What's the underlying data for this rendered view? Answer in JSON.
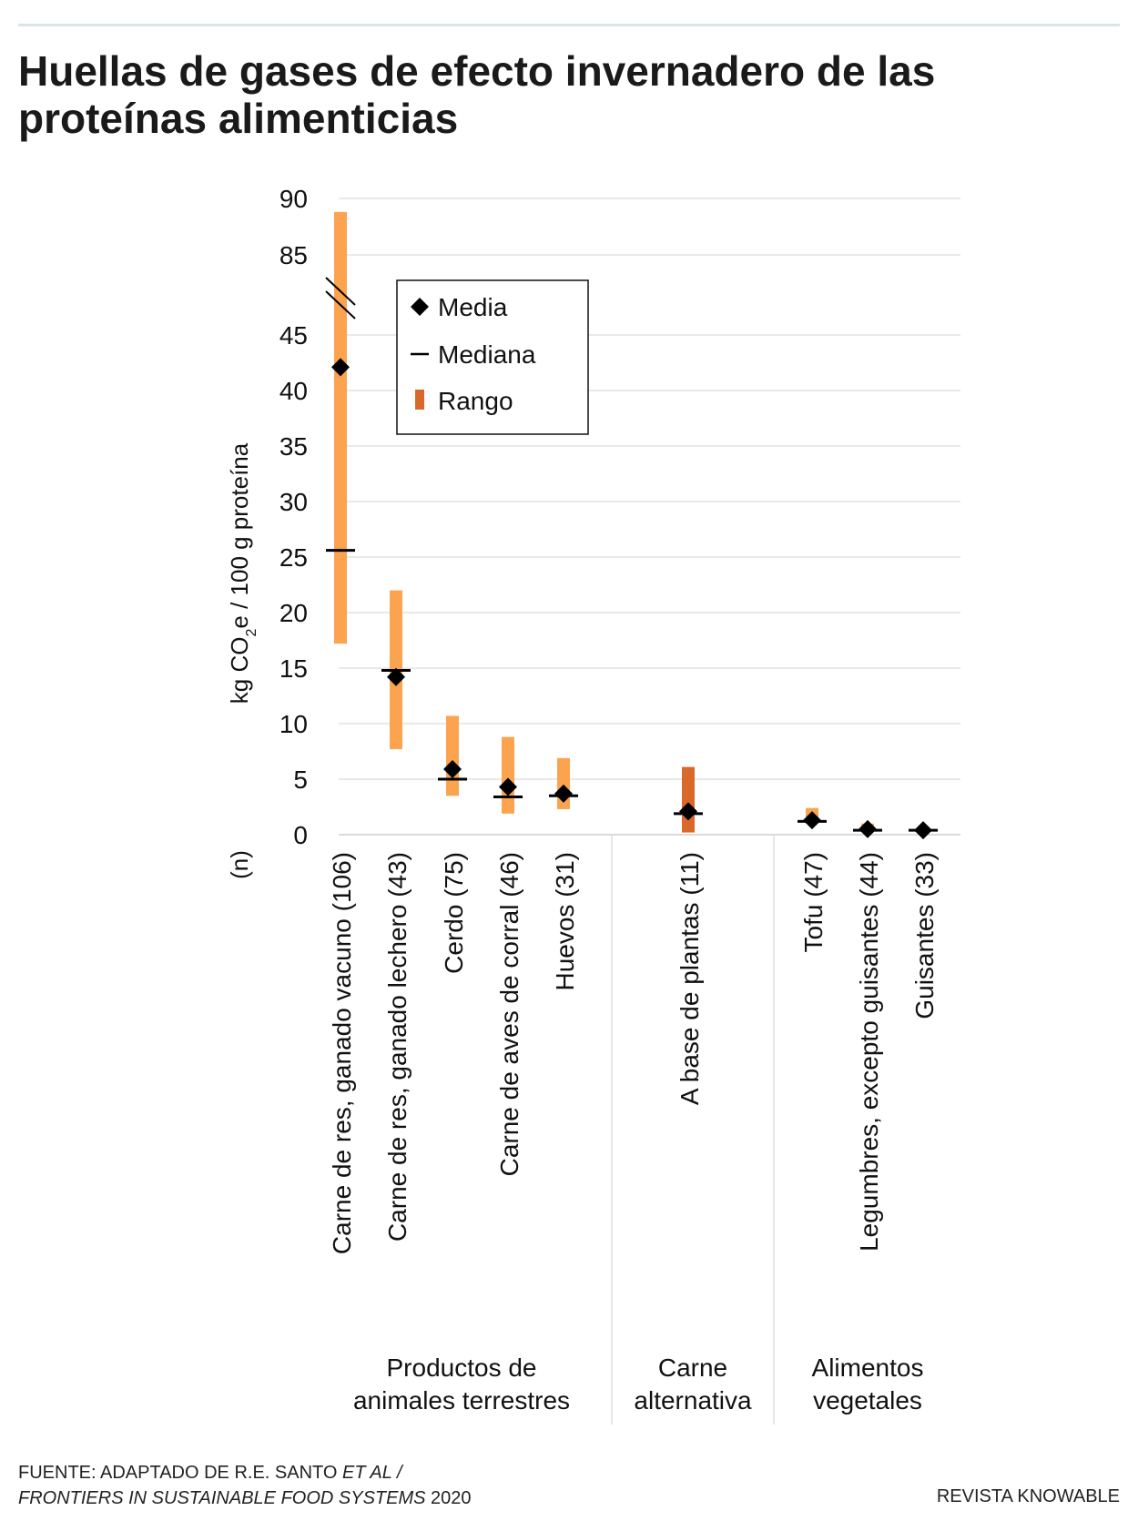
{
  "title": "Huellas de gases de efecto invernadero de las proteínas alimenticias",
  "legend": {
    "mean": "Media",
    "median": "Mediana",
    "range": "Rango"
  },
  "y_axis_label": "kg CO₂e / 100 g proteína",
  "n_label": "(n)",
  "source": {
    "prefix": "FUENTE: ADAPTADO DE R.E. SANTO",
    "et_al": "ET AL /",
    "journal": "FRONTIERS IN SUSTAINABLE FOOD SYSTEMS",
    "year": "2020"
  },
  "credit": "REVISTA KNOWABLE",
  "colors": {
    "range": "#fba34f",
    "range_alt": "#d9692a",
    "marker": "#000000",
    "grid": "#e2e2e2"
  },
  "chart_data": {
    "type": "range-with-markers",
    "ylabel": "kg CO₂e / 100 g proteína",
    "y_ticks_lower": [
      0,
      5,
      10,
      15,
      20,
      25,
      30,
      35,
      40,
      45
    ],
    "y_ticks_upper": [
      85,
      90
    ],
    "y_axis_break": [
      45,
      85
    ],
    "grid": true,
    "legend_position": "top-center",
    "groups": [
      {
        "name": "Productos de animales terrestres",
        "label_lines": [
          "Productos de",
          "animales terrestres"
        ]
      },
      {
        "name": "Carne alternativa",
        "label_lines": [
          "Carne",
          "alternativa"
        ]
      },
      {
        "name": "Alimentos vegetales",
        "label_lines": [
          "Alimentos",
          "vegetales"
        ]
      }
    ],
    "categories": [
      {
        "label": "Carne de res, ganado vacuno (106)",
        "group": 0,
        "min": 17.2,
        "max": 88.8,
        "mean": 42.1,
        "median": 25.6
      },
      {
        "label": "Carne de res, ganado lechero (43)",
        "group": 0,
        "min": 7.7,
        "max": 22.0,
        "mean": 14.2,
        "median": 14.8
      },
      {
        "label": "Cerdo (75)",
        "group": 0,
        "min": 3.5,
        "max": 10.7,
        "mean": 5.9,
        "median": 5.0
      },
      {
        "label": "Carne de aves de corral (46)",
        "group": 0,
        "min": 1.9,
        "max": 8.8,
        "mean": 4.3,
        "median": 3.4
      },
      {
        "label": "Huevos (31)",
        "group": 0,
        "min": 2.3,
        "max": 6.9,
        "mean": 3.7,
        "median": 3.5
      },
      {
        "label": "A base de plantas (11)",
        "group": 1,
        "min": 0.2,
        "max": 6.1,
        "mean": 2.1,
        "median": 1.9
      },
      {
        "label": "Tofu (47)",
        "group": 2,
        "min": 1.0,
        "max": 2.4,
        "mean": 1.3,
        "median": 1.2
      },
      {
        "label": "Legumbres, excepto guisantes (44)",
        "group": 2,
        "min": 0.3,
        "max": 1.0,
        "mean": 0.5,
        "median": 0.4
      },
      {
        "label": "Guisantes (33)",
        "group": 2,
        "min": 0.3,
        "max": 0.5,
        "mean": 0.4,
        "median": 0.4
      }
    ]
  }
}
